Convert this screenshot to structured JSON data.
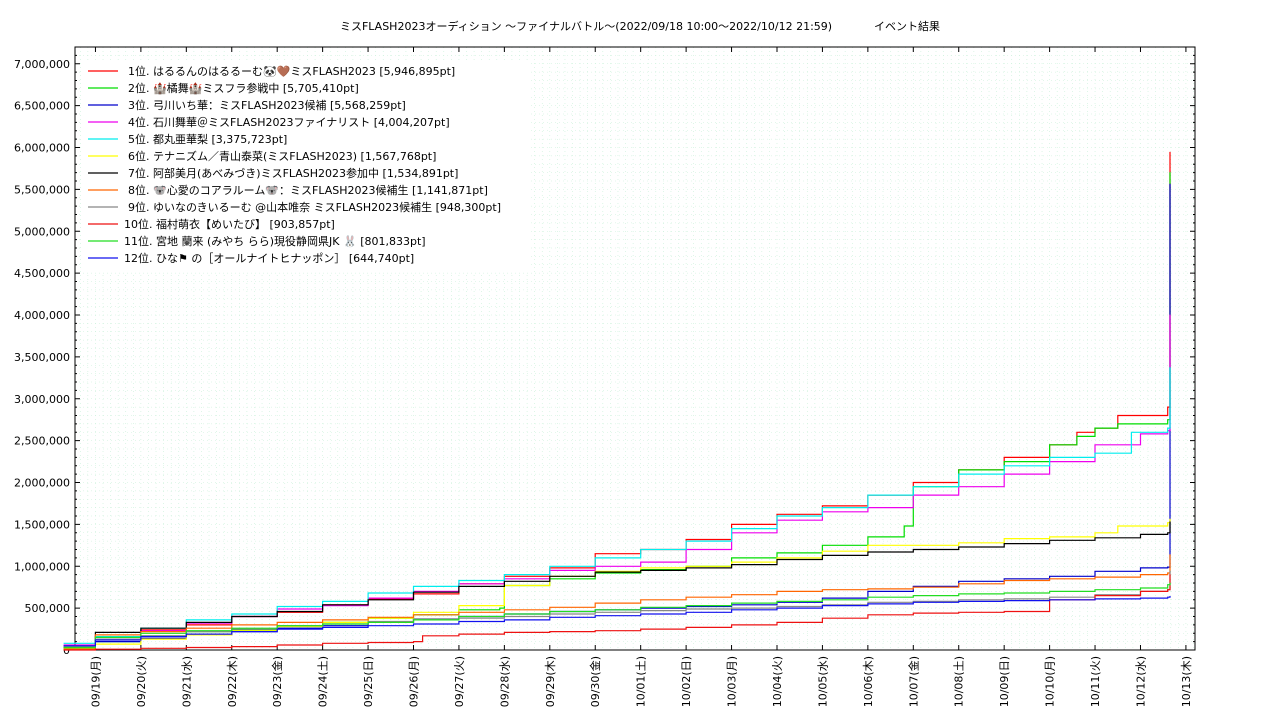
{
  "chart_data": {
    "type": "line",
    "title": "ミスFLASH2023オーディション ～ファイナルバトル～(2022/09/18 10:00～2022/10/12 21:59)            イベント結果",
    "xlabel": "",
    "ylabel": "",
    "x_range": [
      "2022/09/18 10:00",
      "2022/10/13 02:00"
    ],
    "ylim": [
      0,
      7200000
    ],
    "y_ticks": [
      0,
      500000,
      1000000,
      1500000,
      2000000,
      2500000,
      3000000,
      3500000,
      4000000,
      4500000,
      5000000,
      5500000,
      6000000,
      6500000,
      7000000
    ],
    "y_tick_labels": [
      "0",
      "500,000",
      "1,000,000",
      "1,500,000",
      "2,000,000",
      "2,500,000",
      "3,000,000",
      "3,500,000",
      "4,000,000",
      "4,500,000",
      "5,000,000",
      "5,500,000",
      "6,000,000",
      "6,500,000",
      "7,000,000"
    ],
    "x_tick_labels": [
      "09/19(月)",
      "09/20(火)",
      "09/21(水)",
      "09/22(木)",
      "09/23(金)",
      "09/24(土)",
      "09/25(日)",
      "09/26(月)",
      "09/27(火)",
      "09/28(水)",
      "09/29(木)",
      "09/30(金)",
      "10/01(土)",
      "10/02(日)",
      "10/03(月)",
      "10/04(火)",
      "10/05(水)",
      "10/06(木)",
      "10/07(金)",
      "10/08(土)",
      "10/09(日)",
      "10/10(月)",
      "10/11(火)",
      "10/12(水)",
      "10/13(木)"
    ],
    "grid": true,
    "legend_position": "top-left",
    "series": [
      {
        "name": "1位. はるるんのはるるーむ🐼🤎ミスFLASH2023 [5,946,895pt]",
        "color": "#ff0000",
        "x": [
          0.3,
          1,
          2,
          3,
          4,
          5,
          6,
          7,
          8,
          9,
          10,
          11,
          12,
          13,
          14,
          15,
          16,
          17,
          18,
          19,
          20,
          21,
          22,
          22.6,
          23,
          23.5,
          24.6,
          24.65
        ],
        "y": [
          30000,
          150000,
          240000,
          300000,
          400000,
          450000,
          540000,
          610000,
          670000,
          790000,
          880000,
          980000,
          1150000,
          1200000,
          1320000,
          1500000,
          1620000,
          1720000,
          1850000,
          2000000,
          2150000,
          2300000,
          2450000,
          2600000,
          2650000,
          2800000,
          2900000,
          5946895
        ]
      },
      {
        "name": "2位. 🏰橘舞🏰ミスフラ参戦中 [5,705,410pt]",
        "color": "#00dd00",
        "x": [
          0.3,
          1,
          2,
          3,
          4,
          5,
          6,
          7,
          8,
          9,
          9.9,
          10,
          11,
          12,
          13,
          14,
          15,
          16,
          17,
          18,
          18.8,
          19,
          20,
          21,
          22,
          22.6,
          23,
          23.5,
          24.6,
          24.65
        ],
        "y": [
          20000,
          100000,
          170000,
          220000,
          240000,
          280000,
          330000,
          380000,
          420000,
          480000,
          500000,
          770000,
          850000,
          920000,
          960000,
          1000000,
          1100000,
          1160000,
          1250000,
          1350000,
          1480000,
          1950000,
          2150000,
          2250000,
          2450000,
          2550000,
          2650000,
          2700000,
          2750000,
          5705410
        ]
      },
      {
        "name": "3位. 弓川いち華：ミスFLASH2023候補 [5,568,259pt]",
        "color": "#0000cc",
        "x": [
          0.3,
          1,
          2,
          3,
          4,
          5,
          6,
          7,
          8,
          9,
          10,
          11,
          12,
          13,
          14,
          15,
          16,
          17,
          18,
          19,
          20,
          21,
          22,
          23,
          24,
          24.6,
          24.65
        ],
        "y": [
          50000,
          100000,
          140000,
          180000,
          220000,
          260000,
          290000,
          330000,
          370000,
          400000,
          430000,
          460000,
          480000,
          500000,
          520000,
          540000,
          570000,
          620000,
          700000,
          760000,
          820000,
          850000,
          880000,
          940000,
          980000,
          990000,
          5568259
        ]
      },
      {
        "name": "4位. 石川舞華＠ミスFLASH2023ファイナリスト [4,004,207pt]",
        "color": "#ee00ee",
        "x": [
          0.3,
          1,
          2,
          3,
          4,
          5,
          6,
          7,
          8,
          9,
          10,
          11,
          12,
          13,
          14,
          15,
          16,
          17,
          18,
          19,
          20,
          21,
          22,
          23,
          24,
          24.6,
          24.65
        ],
        "y": [
          60000,
          150000,
          230000,
          320000,
          400000,
          490000,
          530000,
          620000,
          700000,
          790000,
          850000,
          950000,
          1000000,
          1050000,
          1200000,
          1400000,
          1550000,
          1650000,
          1700000,
          1850000,
          1950000,
          2100000,
          2250000,
          2450000,
          2580000,
          2620000,
          4004207
        ]
      },
      {
        "name": "5位. 都丸亜華梨 [3,375,723pt]",
        "color": "#00eeee",
        "x": [
          0.3,
          1,
          2,
          3,
          4,
          5,
          6,
          7,
          8,
          9,
          10,
          11,
          12,
          13,
          14,
          15,
          16,
          17,
          18,
          19,
          20,
          21,
          22,
          23,
          23.8,
          24.6,
          24.65
        ],
        "y": [
          80000,
          160000,
          260000,
          360000,
          430000,
          520000,
          580000,
          680000,
          760000,
          830000,
          900000,
          1000000,
          1100000,
          1200000,
          1300000,
          1450000,
          1600000,
          1700000,
          1850000,
          1950000,
          2100000,
          2200000,
          2300000,
          2350000,
          2600000,
          2650000,
          3375723
        ]
      },
      {
        "name": "6位. テナニズム／青山泰菜(ミスFLASH2023) [1,567,768pt]",
        "color": "#ffff00",
        "x": [
          0.3,
          1,
          2,
          3,
          4,
          5,
          6,
          7,
          8,
          9,
          10,
          11,
          12,
          13,
          14,
          15,
          16,
          17,
          18,
          19,
          20,
          21,
          22,
          23,
          23.5,
          24.6,
          24.65
        ],
        "y": [
          20000,
          70000,
          130000,
          180000,
          230000,
          280000,
          330000,
          380000,
          450000,
          530000,
          770000,
          880000,
          940000,
          980000,
          1000000,
          1050000,
          1100000,
          1180000,
          1250000,
          1250000,
          1280000,
          1330000,
          1350000,
          1400000,
          1480000,
          1520000,
          1567768
        ]
      },
      {
        "name": "7位. 阿部美月(あべみづき)ミスFLASH2023参加中 [1,534,891pt]",
        "color": "#000000",
        "x": [
          0.3,
          1,
          2,
          3,
          4,
          5,
          6,
          7,
          8,
          9,
          10,
          11,
          12,
          13,
          14,
          15,
          16,
          17,
          18,
          19,
          20,
          21,
          22,
          23,
          24,
          24.6,
          24.65
        ],
        "y": [
          30000,
          210000,
          260000,
          330000,
          400000,
          460000,
          540000,
          600000,
          690000,
          760000,
          820000,
          880000,
          930000,
          950000,
          980000,
          1020000,
          1080000,
          1130000,
          1170000,
          1200000,
          1230000,
          1270000,
          1310000,
          1340000,
          1380000,
          1400000,
          1534891
        ]
      },
      {
        "name": "8位. 🐨心愛のコアラルーム🐨：ミスFLASH2023候補生 [1,141,871pt]",
        "color": "#ff6600",
        "x": [
          0.3,
          1,
          2,
          3,
          4,
          5,
          6,
          7,
          8,
          9,
          10,
          11,
          12,
          13,
          14,
          15,
          16,
          17,
          18,
          19,
          20,
          21,
          22,
          23,
          24,
          24.6,
          24.65
        ],
        "y": [
          10000,
          180000,
          220000,
          260000,
          300000,
          330000,
          360000,
          390000,
          420000,
          450000,
          480000,
          510000,
          560000,
          600000,
          630000,
          660000,
          700000,
          720000,
          730000,
          750000,
          790000,
          830000,
          850000,
          870000,
          900000,
          920000,
          1141871
        ]
      },
      {
        "name": "9位. ゆいなのきいるーむ @山本唯奈 ミスFLASH2023候補生 [948,300pt]",
        "color": "#888888",
        "x": [
          0.3,
          1,
          2,
          3,
          4,
          5,
          6,
          7,
          8,
          9,
          10,
          11,
          12,
          13,
          14,
          15,
          16,
          17,
          18,
          19,
          20,
          21,
          22,
          23,
          24,
          24.6,
          24.65
        ],
        "y": [
          40000,
          130000,
          170000,
          220000,
          250000,
          290000,
          310000,
          340000,
          370000,
          380000,
          400000,
          430000,
          450000,
          470000,
          490000,
          500000,
          520000,
          540000,
          570000,
          580000,
          600000,
          610000,
          630000,
          660000,
          700000,
          720000,
          948300
        ]
      },
      {
        "name": "10位. 福村萌衣【めいたび】 [903,857pt]",
        "color": "#ee1111",
        "x": [
          0.3,
          1,
          2,
          3,
          4,
          5,
          6,
          7,
          8,
          8.2,
          9,
          10,
          11,
          12,
          13,
          14,
          15,
          16,
          17,
          18,
          19,
          20,
          21,
          22,
          23,
          24,
          24.6,
          24.65
        ],
        "y": [
          0,
          10000,
          20000,
          30000,
          40000,
          60000,
          80000,
          90000,
          100000,
          170000,
          190000,
          210000,
          220000,
          230000,
          250000,
          270000,
          300000,
          330000,
          380000,
          420000,
          440000,
          450000,
          460000,
          600000,
          650000,
          700000,
          720000,
          903857
        ]
      },
      {
        "name": "11位. 宮地 蘭来 (みやち らら)現役静岡県JK 🐰 [801,833pt]",
        "color": "#22dd22",
        "x": [
          0.3,
          1,
          2,
          3,
          4,
          5,
          6,
          7,
          8,
          9,
          10,
          11,
          12,
          13,
          14,
          15,
          16,
          17,
          18,
          19,
          20,
          21,
          22,
          23,
          24,
          24.6,
          24.65
        ],
        "y": [
          30000,
          150000,
          200000,
          230000,
          260000,
          290000,
          310000,
          330000,
          360000,
          400000,
          430000,
          460000,
          480000,
          510000,
          530000,
          560000,
          580000,
          600000,
          630000,
          650000,
          670000,
          680000,
          700000,
          720000,
          740000,
          780000,
          801833
        ]
      },
      {
        "name": "12位. ひな⚑ の［オールナイトヒナッポン］ [644,740pt]",
        "color": "#1111ee",
        "x": [
          0.3,
          1,
          2,
          3,
          4,
          5,
          6,
          7,
          8,
          9,
          10,
          11,
          12,
          13,
          14,
          15,
          16,
          17,
          18,
          19,
          20,
          21,
          22,
          23,
          24,
          24.6,
          24.65
        ],
        "y": [
          50000,
          120000,
          160000,
          190000,
          220000,
          250000,
          270000,
          290000,
          310000,
          340000,
          360000,
          390000,
          410000,
          430000,
          450000,
          480000,
          500000,
          530000,
          550000,
          570000,
          580000,
          590000,
          600000,
          610000,
          620000,
          630000,
          644740
        ]
      }
    ]
  }
}
